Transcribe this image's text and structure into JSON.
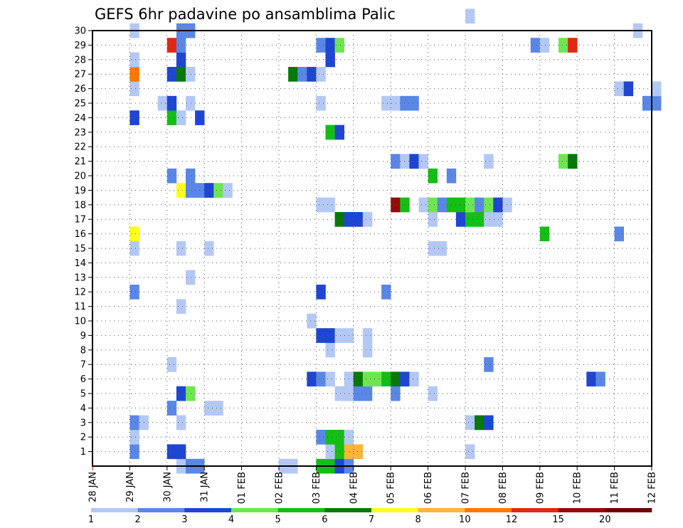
{
  "chart_data": {
    "type": "heatmap",
    "title": "GEFS 6hr padavine po ansamblima Palic",
    "x_ticks": [
      "28 JAN",
      "29 JAN",
      "30 JAN",
      "31 JAN",
      "01 FEB",
      "02 FEB",
      "03 FEB",
      "04 FEB",
      "05 FEB",
      "06 FEB",
      "07 FEB",
      "08 FEB",
      "09 FEB",
      "10 FEB",
      "11 FEB",
      "12 FEB"
    ],
    "y_ticks": [
      1,
      2,
      3,
      4,
      5,
      6,
      7,
      8,
      9,
      10,
      11,
      12,
      13,
      14,
      15,
      16,
      17,
      18,
      19,
      20,
      21,
      22,
      23,
      24,
      25,
      26,
      27,
      28,
      29,
      30
    ],
    "xlim_steps": [
      0,
      60
    ],
    "ylim": [
      0,
      30
    ],
    "grid": "dotted",
    "colorbar": {
      "levels": [
        "1",
        "2",
        "3",
        "4",
        "5",
        "6",
        "7",
        "8",
        "10",
        "12",
        "15",
        "20"
      ],
      "colors": [
        "#b4c8f5",
        "#5a87e6",
        "#1e46d2",
        "#6ee650",
        "#14be14",
        "#087808",
        "#ffff1e",
        "#ffb43c",
        "#ff7800",
        "#e12814",
        "#960a0a",
        "#6e0000"
      ]
    },
    "cells": [
      [
        9,
        0,
        0
      ],
      [
        10,
        0,
        1
      ],
      [
        11,
        0,
        1
      ],
      [
        20,
        0,
        0
      ],
      [
        21,
        0,
        0
      ],
      [
        24,
        0,
        4
      ],
      [
        25,
        0,
        4
      ],
      [
        26,
        0,
        2
      ],
      [
        27,
        0,
        1
      ],
      [
        4,
        1,
        1
      ],
      [
        8,
        1,
        2
      ],
      [
        9,
        1,
        2
      ],
      [
        25,
        1,
        0
      ],
      [
        26,
        1,
        4
      ],
      [
        27,
        1,
        7
      ],
      [
        28,
        1,
        7
      ],
      [
        40,
        1,
        0
      ],
      [
        4,
        2,
        0
      ],
      [
        24,
        2,
        1
      ],
      [
        25,
        2,
        4
      ],
      [
        26,
        2,
        4
      ],
      [
        27,
        2,
        0
      ],
      [
        4,
        3,
        1
      ],
      [
        5,
        3,
        0
      ],
      [
        9,
        3,
        0
      ],
      [
        40,
        3,
        0
      ],
      [
        41,
        3,
        5
      ],
      [
        42,
        3,
        2
      ],
      [
        8,
        4,
        1
      ],
      [
        12,
        4,
        0
      ],
      [
        13,
        4,
        0
      ],
      [
        9,
        5,
        2
      ],
      [
        10,
        5,
        3
      ],
      [
        26,
        5,
        0
      ],
      [
        27,
        5,
        0
      ],
      [
        28,
        5,
        1
      ],
      [
        29,
        5,
        1
      ],
      [
        32,
        5,
        1
      ],
      [
        36,
        5,
        0
      ],
      [
        23,
        6,
        2
      ],
      [
        24,
        6,
        1
      ],
      [
        25,
        6,
        0
      ],
      [
        27,
        6,
        0
      ],
      [
        28,
        6,
        5
      ],
      [
        29,
        6,
        3
      ],
      [
        30,
        6,
        3
      ],
      [
        31,
        6,
        4
      ],
      [
        32,
        6,
        5
      ],
      [
        33,
        6,
        2
      ],
      [
        34,
        6,
        0
      ],
      [
        53,
        6,
        2
      ],
      [
        54,
        6,
        1
      ],
      [
        8,
        7,
        0
      ],
      [
        42,
        7,
        1
      ],
      [
        25,
        8,
        0
      ],
      [
        29,
        8,
        0
      ],
      [
        24,
        9,
        2
      ],
      [
        25,
        9,
        2
      ],
      [
        26,
        9,
        0
      ],
      [
        27,
        9,
        0
      ],
      [
        29,
        9,
        0
      ],
      [
        23,
        10,
        0
      ],
      [
        9,
        11,
        0
      ],
      [
        4,
        12,
        1
      ],
      [
        24,
        12,
        2
      ],
      [
        31,
        12,
        1
      ],
      [
        10,
        13,
        0
      ],
      [
        4,
        15,
        0
      ],
      [
        9,
        15,
        0
      ],
      [
        12,
        15,
        0
      ],
      [
        36,
        15,
        0
      ],
      [
        37,
        15,
        0
      ],
      [
        4,
        16,
        6
      ],
      [
        48,
        16,
        4
      ],
      [
        56,
        16,
        1
      ],
      [
        26,
        17,
        5
      ],
      [
        27,
        17,
        2
      ],
      [
        28,
        17,
        2
      ],
      [
        29,
        17,
        0
      ],
      [
        36,
        17,
        0
      ],
      [
        39,
        17,
        2
      ],
      [
        40,
        17,
        4
      ],
      [
        41,
        17,
        4
      ],
      [
        42,
        17,
        0
      ],
      [
        43,
        17,
        0
      ],
      [
        24,
        18,
        0
      ],
      [
        25,
        18,
        0
      ],
      [
        32,
        18,
        10
      ],
      [
        33,
        18,
        4
      ],
      [
        35,
        18,
        0
      ],
      [
        36,
        18,
        3
      ],
      [
        37,
        18,
        1
      ],
      [
        38,
        18,
        4
      ],
      [
        39,
        18,
        4
      ],
      [
        40,
        18,
        3
      ],
      [
        41,
        18,
        1
      ],
      [
        42,
        18,
        3
      ],
      [
        43,
        18,
        2
      ],
      [
        44,
        18,
        0
      ],
      [
        9,
        19,
        6
      ],
      [
        10,
        19,
        1
      ],
      [
        11,
        19,
        1
      ],
      [
        12,
        19,
        2
      ],
      [
        13,
        19,
        3
      ],
      [
        14,
        19,
        0
      ],
      [
        8,
        20,
        1
      ],
      [
        10,
        20,
        1
      ],
      [
        36,
        20,
        4
      ],
      [
        38,
        20,
        1
      ],
      [
        32,
        21,
        1
      ],
      [
        33,
        21,
        0
      ],
      [
        34,
        21,
        2
      ],
      [
        35,
        21,
        0
      ],
      [
        42,
        21,
        0
      ],
      [
        50,
        21,
        3
      ],
      [
        51,
        21,
        5
      ],
      [
        25,
        23,
        4
      ],
      [
        26,
        23,
        2
      ],
      [
        4,
        24,
        2
      ],
      [
        8,
        24,
        4
      ],
      [
        9,
        24,
        0
      ],
      [
        11,
        24,
        2
      ],
      [
        7,
        25,
        0
      ],
      [
        8,
        25,
        2
      ],
      [
        10,
        25,
        0
      ],
      [
        24,
        25,
        0
      ],
      [
        31,
        25,
        0
      ],
      [
        32,
        25,
        0
      ],
      [
        33,
        25,
        1
      ],
      [
        34,
        25,
        1
      ],
      [
        59,
        25,
        1
      ],
      [
        60,
        25,
        1
      ],
      [
        4,
        26,
        0
      ],
      [
        56,
        26,
        0
      ],
      [
        57,
        26,
        2
      ],
      [
        60,
        26,
        0
      ],
      [
        4,
        27,
        8
      ],
      [
        8,
        27,
        2
      ],
      [
        9,
        27,
        5
      ],
      [
        10,
        27,
        0
      ],
      [
        21,
        27,
        5
      ],
      [
        22,
        27,
        1
      ],
      [
        23,
        27,
        2
      ],
      [
        24,
        27,
        0
      ],
      [
        4,
        28,
        0
      ],
      [
        9,
        28,
        2
      ],
      [
        25,
        28,
        2
      ],
      [
        8,
        29,
        9
      ],
      [
        9,
        29,
        1
      ],
      [
        24,
        29,
        1
      ],
      [
        25,
        29,
        2
      ],
      [
        26,
        29,
        3
      ],
      [
        47,
        29,
        1
      ],
      [
        48,
        29,
        0
      ],
      [
        50,
        29,
        3
      ],
      [
        51,
        29,
        9
      ],
      [
        4,
        30,
        0
      ],
      [
        9,
        30,
        1
      ],
      [
        10,
        30,
        1
      ],
      [
        58,
        30,
        0
      ],
      [
        40,
        31,
        0
      ]
    ]
  }
}
